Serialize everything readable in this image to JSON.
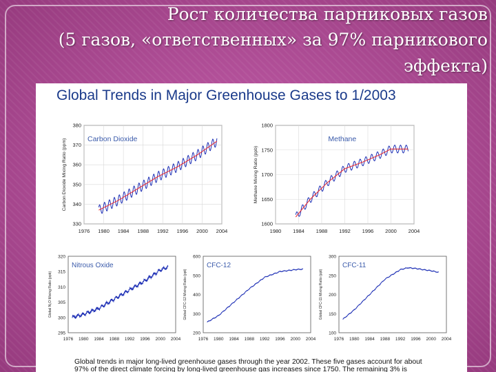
{
  "slide": {
    "title_lines": [
      "Рост количества парниковых газов",
      "(5 газов, «ответственных» за 97% парникового",
      "эффекта)"
    ],
    "colors": {
      "background": "#b04a96",
      "title_text": "#ffffff"
    }
  },
  "figure": {
    "title": "Global Trends in Major Greenhouse Gases to 1/2003",
    "caption_lines": [
      "Global trends in major long-lived greenhouse gases through the year 2002. These five gases account for about",
      "97% of the direct climate forcing by long-lived greenhouse gas increases since 1750. The remaining 3% is"
    ],
    "colors": {
      "title": "#1a3a8a",
      "label": "#3a5aaa",
      "series": "#1d2fb5",
      "trend": "#e8333a"
    }
  },
  "chart_data": [
    {
      "type": "line",
      "label": "Carbon Dioxide",
      "ylabel": "Carbon Dioxide Mixing Ratio (ppm)",
      "xlim": [
        1976,
        2004
      ],
      "ylim": [
        330,
        380
      ],
      "xticks": [
        1976,
        1980,
        1984,
        1988,
        1992,
        1996,
        2000,
        2004
      ],
      "yticks": [
        330,
        340,
        350,
        360,
        370,
        380
      ],
      "grid": true,
      "seasonal_amplitude": 2.5,
      "trend": {
        "x": [
          1979,
          1983,
          1987,
          1991,
          1995,
          1999,
          2003
        ],
        "y": [
          337,
          342,
          348,
          354,
          359,
          365,
          372
        ]
      }
    },
    {
      "type": "line",
      "label": "Methane",
      "ylabel": "Methane Mixing Ratio (ppb)",
      "xlim": [
        1980,
        2004
      ],
      "ylim": [
        1600,
        1800
      ],
      "xticks": [
        1980,
        1984,
        1988,
        1992,
        1996,
        2000,
        2004
      ],
      "yticks": [
        1600,
        1650,
        1700,
        1750,
        1800
      ],
      "grid": true,
      "seasonal_amplitude": 8,
      "trend": {
        "x": [
          1983.5,
          1986,
          1989,
          1992,
          1995,
          1998,
          2000,
          2003
        ],
        "y": [
          1614,
          1650,
          1684,
          1712,
          1725,
          1740,
          1752,
          1752
        ]
      }
    },
    {
      "type": "line",
      "label": "Nitrous Oxide",
      "ylabel": "Global N₂O Mixing Ratio (ppb)",
      "xlim": [
        1976,
        2004
      ],
      "ylim": [
        295,
        320
      ],
      "xticks": [
        1976,
        1980,
        1984,
        1988,
        1992,
        1996,
        2000,
        2004
      ],
      "yticks": [
        295,
        300,
        305,
        310,
        315,
        320
      ],
      "grid": false,
      "noise_amplitude": 0.7,
      "trend": {
        "x": [
          1977,
          1980,
          1984,
          1988,
          1992,
          1996,
          2000,
          2002
        ],
        "y": [
          300,
          301,
          303,
          306,
          309,
          312,
          315.5,
          316.5
        ]
      }
    },
    {
      "type": "line",
      "label": "CFC-12",
      "ylabel": "Global CFC-12 Mixing Ratio (ppt)",
      "xlim": [
        1976,
        2004
      ],
      "ylim": [
        200,
        600
      ],
      "xticks": [
        1976,
        1980,
        1984,
        1988,
        1992,
        1996,
        2000,
        2004
      ],
      "yticks": [
        200,
        300,
        400,
        500,
        600
      ],
      "grid": false,
      "noise_amplitude": 3,
      "trend": {
        "x": [
          1977,
          1980,
          1984,
          1988,
          1992,
          1996,
          2000,
          2002
        ],
        "y": [
          255,
          290,
          360,
          430,
          490,
          520,
          530,
          533
        ]
      }
    },
    {
      "type": "line",
      "label": "CFC-11",
      "ylabel": "Global CFC-11 Mixing Ratio (ppt)",
      "xlim": [
        1976,
        2004
      ],
      "ylim": [
        100,
        300
      ],
      "xticks": [
        1976,
        1980,
        1984,
        1988,
        1992,
        1996,
        2000,
        2004
      ],
      "yticks": [
        100,
        150,
        200,
        250,
        300
      ],
      "grid": false,
      "noise_amplitude": 1.5,
      "trend": {
        "x": [
          1977,
          1980,
          1984,
          1988,
          1992,
          1994,
          1996,
          2000,
          2002
        ],
        "y": [
          135,
          160,
          200,
          240,
          265,
          270,
          268,
          262,
          258
        ]
      }
    }
  ]
}
